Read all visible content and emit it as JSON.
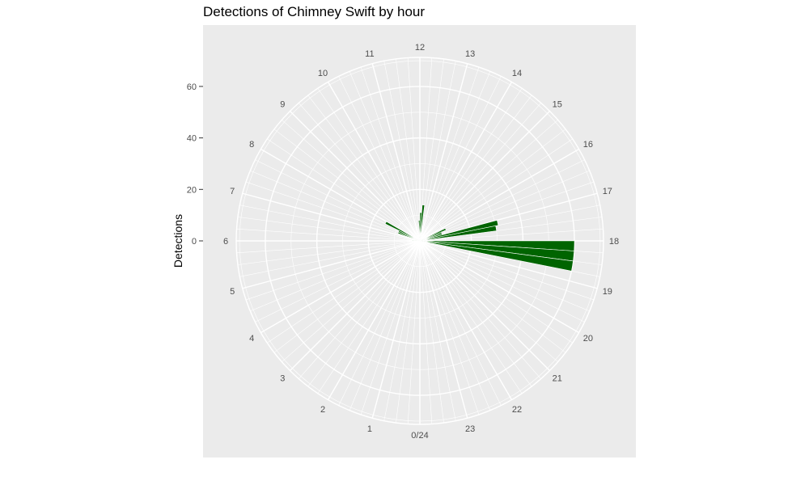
{
  "chart_data": {
    "type": "bar",
    "coord": "polar",
    "title": "Detections of Chimney Swift by hour",
    "ylabel": "Detections",
    "xlabel": "",
    "ylim": [
      0,
      65
    ],
    "y_ticks": [
      "0",
      "20",
      "40",
      "60"
    ],
    "hour_labels": [
      "0/24",
      "1",
      "2",
      "3",
      "4",
      "5",
      "6",
      "7",
      "8",
      "9",
      "10",
      "11",
      "12",
      "13",
      "14",
      "15",
      "16",
      "17",
      "18",
      "19",
      "20",
      "21",
      "22",
      "23"
    ],
    "bins_per_hour": 4,
    "bins": [
      {
        "hour": 6.25,
        "value": 3
      },
      {
        "hour": 7.0,
        "value": 3
      },
      {
        "hour": 7.25,
        "value": 9
      },
      {
        "hour": 7.5,
        "value": 9
      },
      {
        "hour": 7.75,
        "value": 15
      },
      {
        "hour": 11.5,
        "value": 2
      },
      {
        "hour": 11.75,
        "value": 8
      },
      {
        "hour": 12.0,
        "value": 11
      },
      {
        "hour": 12.25,
        "value": 14
      },
      {
        "hour": 12.75,
        "value": 2
      },
      {
        "hour": 16.0,
        "value": 2
      },
      {
        "hour": 16.25,
        "value": 11
      },
      {
        "hour": 16.5,
        "value": 9
      },
      {
        "hour": 16.75,
        "value": 9
      },
      {
        "hour": 17.0,
        "value": 31
      },
      {
        "hour": 17.25,
        "value": 30
      },
      {
        "hour": 18.0,
        "value": 60
      },
      {
        "hour": 18.25,
        "value": 60
      },
      {
        "hour": 18.5,
        "value": 60
      }
    ],
    "bar_color": "#006400",
    "panel_color": "#ebebeb",
    "grid_color": "#ffffff",
    "grid": true,
    "legend": "none"
  }
}
